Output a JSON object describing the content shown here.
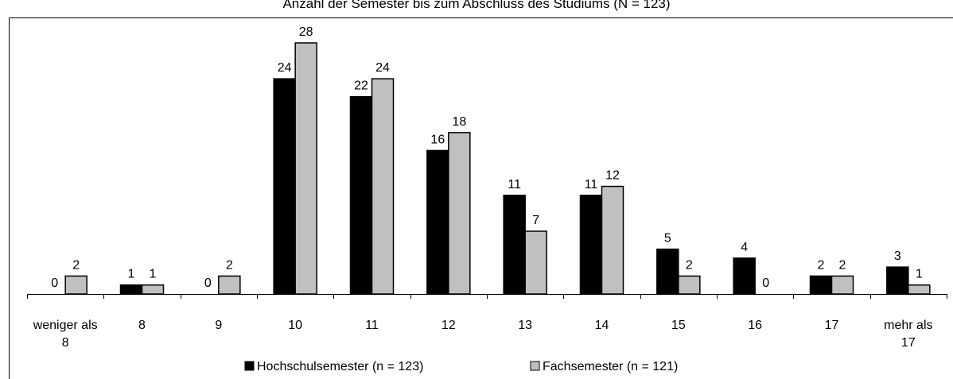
{
  "chart_data": {
    "type": "bar",
    "title": "Anzahl der Semester bis zum Abschluss des Studiums (N = 123)",
    "categories": [
      [
        "weniger als",
        "8"
      ],
      [
        "8"
      ],
      [
        "9"
      ],
      [
        "10"
      ],
      [
        "11"
      ],
      [
        "12"
      ],
      [
        "13"
      ],
      [
        "14"
      ],
      [
        "15"
      ],
      [
        "16"
      ],
      [
        "17"
      ],
      [
        "mehr als",
        "17"
      ]
    ],
    "series": [
      {
        "name": "Hochschulsemester (n = 123)",
        "color": "#000000",
        "values": [
          0,
          1,
          0,
          24,
          22,
          16,
          11,
          11,
          5,
          4,
          2,
          3
        ]
      },
      {
        "name": "Fachsemester (n = 121)",
        "color": "#c0c0c0",
        "values": [
          2,
          1,
          2,
          28,
          24,
          18,
          7,
          12,
          2,
          0,
          2,
          1
        ]
      }
    ],
    "ylim": [
      0,
      28
    ],
    "legend_position": "bottom",
    "grid": false
  }
}
